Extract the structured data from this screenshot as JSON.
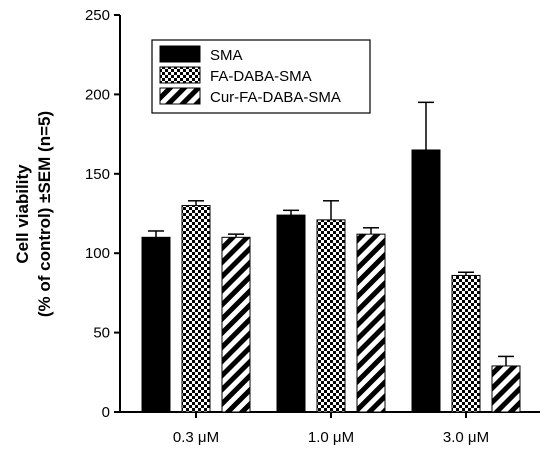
{
  "chart_data": {
    "type": "bar",
    "title": "",
    "xlabel": "",
    "ylabel_line1": "Cell viability",
    "ylabel_line2": "(% of control) ±SEM (n=5)",
    "categories": [
      "0.3 μM",
      "1.0 μM",
      "3.0 μM"
    ],
    "ylim": [
      0,
      250
    ],
    "yticks": [
      0,
      50,
      100,
      150,
      200,
      250
    ],
    "legend_position": "top-left",
    "series": [
      {
        "name": "SMA",
        "pattern": "solid",
        "color": "#000000",
        "values": [
          110,
          124,
          165
        ],
        "errors": [
          4,
          3,
          30
        ]
      },
      {
        "name": "FA-DABA-SMA",
        "pattern": "checker",
        "color": "#000000",
        "values": [
          130,
          121,
          86
        ],
        "errors": [
          3,
          12,
          2
        ]
      },
      {
        "name": "Cur-FA-DABA-SMA",
        "pattern": "diagonal-stripes",
        "color": "#000000",
        "values": [
          110,
          112,
          29
        ],
        "errors": [
          2,
          4,
          6
        ]
      }
    ]
  }
}
